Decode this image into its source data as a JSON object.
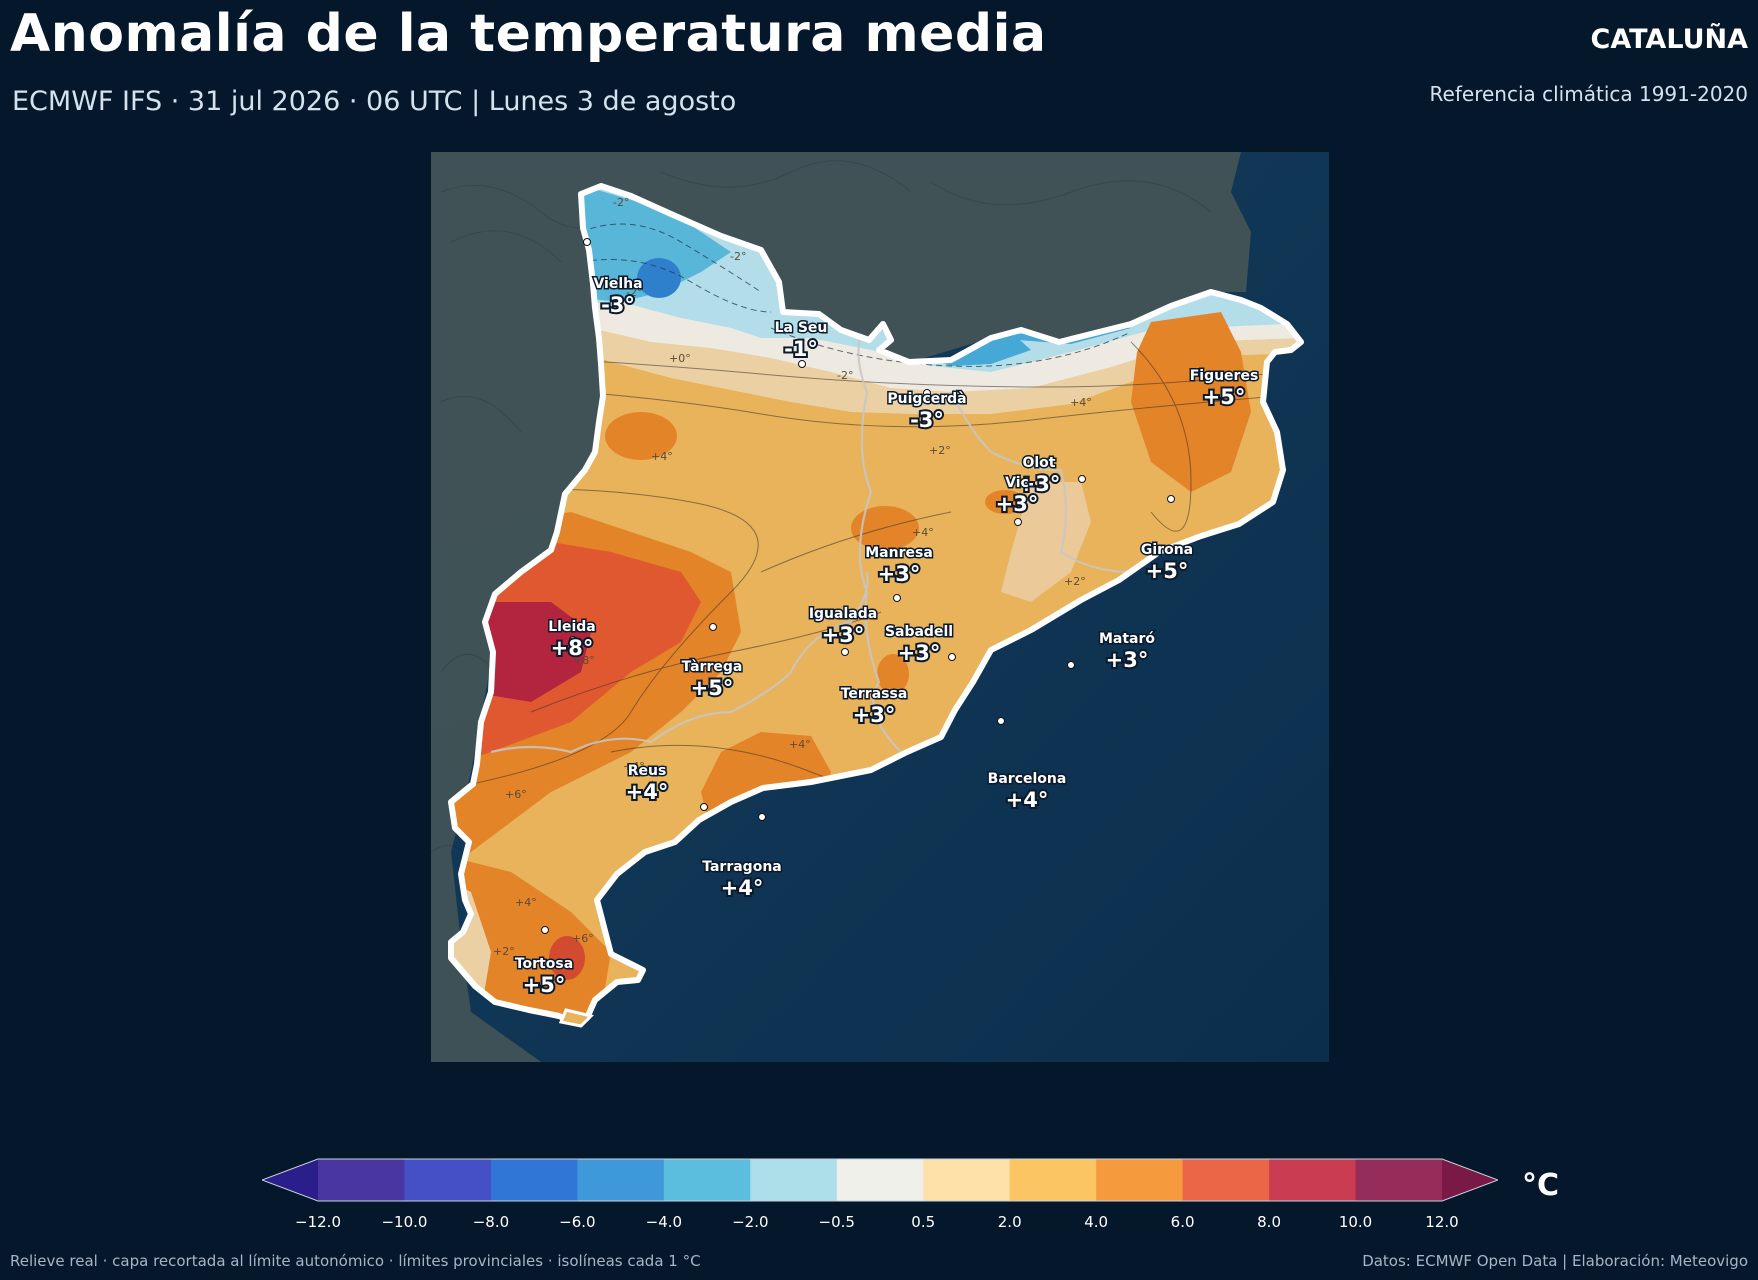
{
  "header": {
    "title": "Anomalía de la temperatura media",
    "region": "CATALUÑA",
    "subtitle": "ECMWF IFS · 31 jul 2026 · 06 UTC  |  Lunes 3 de agosto",
    "reference": "Referencia climática 1991-2020"
  },
  "map": {
    "cities": [
      {
        "name": "Vielha",
        "value": "-3°"
      },
      {
        "name": "La Seu",
        "value": "-1°"
      },
      {
        "name": "Puigcerdà",
        "value": "-3°"
      },
      {
        "name": "Figueres",
        "value": "+5°"
      },
      {
        "name": "Olot",
        "value": "+3°"
      },
      {
        "name": "Vic",
        "value": "+3°"
      },
      {
        "name": "Manresa",
        "value": "+3°"
      },
      {
        "name": "Girona",
        "value": "+5°"
      },
      {
        "name": "Lleida",
        "value": "+8°"
      },
      {
        "name": "Igualada",
        "value": "+3°"
      },
      {
        "name": "Sabadell",
        "value": "+3°"
      },
      {
        "name": "Mataró",
        "value": "+3°"
      },
      {
        "name": "Tàrrega",
        "value": "+5°"
      },
      {
        "name": "Terrassa",
        "value": "+3°"
      },
      {
        "name": "Barcelona",
        "value": "+4°"
      },
      {
        "name": "Reus",
        "value": "+4°"
      },
      {
        "name": "Tarragona",
        "value": "+4°"
      },
      {
        "name": "Tortosa",
        "value": "+5°"
      }
    ],
    "isolines": [
      "-2°",
      "-2°",
      "-2°",
      "+0°",
      "-2°",
      "+2°",
      "+4°",
      "+4°",
      "+4°",
      "+2°",
      "+8°",
      "+6°",
      "+4°",
      "+4°",
      "+6°",
      "+2°",
      "+4°"
    ]
  },
  "colorbar": {
    "unit": "°C",
    "ticks": [
      "−12.0",
      "−10.0",
      "−8.0",
      "−6.0",
      "−4.0",
      "−2.0",
      "−0.5",
      "0.5",
      "2.0",
      "4.0",
      "6.0",
      "8.0",
      "10.0",
      "12.0"
    ],
    "colors": [
      "#2a1f8a",
      "#4a36a0",
      "#4650c6",
      "#2f76d6",
      "#3f98da",
      "#5bbede",
      "#acdfea",
      "#eff0ea",
      "#fde1a8",
      "#fbc563",
      "#f69a3e",
      "#ea6647",
      "#c93c52",
      "#962c59",
      "#7a1846"
    ],
    "underflow_color": "#2a1f8a",
    "overflow_color": "#7a1846"
  },
  "footer": {
    "left": "Relieve real · capa recortada al límite autonómico · límites provinciales · isolíneas cada 1 °C",
    "right": "Datos: ECMWF Open Data | Elaboración: Meteovigo"
  }
}
